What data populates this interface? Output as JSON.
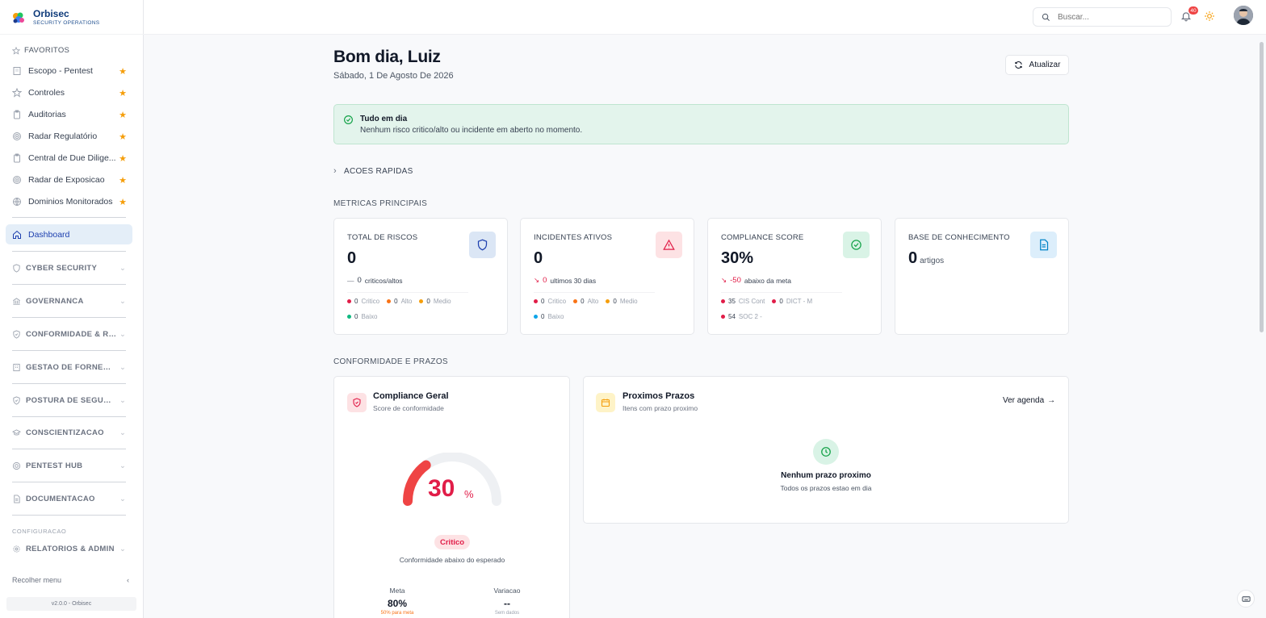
{
  "brand": {
    "name": "Orbisec",
    "subtitle": "SECURITY OPERATIONS"
  },
  "sidebar": {
    "favorites_header": "FAVORITOS",
    "favorites": [
      {
        "label": "Escopo - Pentest",
        "icon": "building-icon"
      },
      {
        "label": "Controles",
        "icon": "star-outline-icon"
      },
      {
        "label": "Auditorias",
        "icon": "clipboard-icon"
      },
      {
        "label": "Radar Regulatório",
        "icon": "radar-icon"
      },
      {
        "label": "Central de Due Dilige...",
        "icon": "clipboard-icon"
      },
      {
        "label": "Radar de Exposicao",
        "icon": "radar-icon"
      },
      {
        "label": "Dominios Monitorados",
        "icon": "globe-icon"
      }
    ],
    "active_item": "Dashboard",
    "groups": [
      {
        "label": "CYBER SECURITY",
        "icon": "shield-icon"
      },
      {
        "label": "GOVERNANCA",
        "icon": "bank-icon"
      },
      {
        "label": "CONFORMIDADE & RIS...",
        "icon": "shield-check-icon"
      },
      {
        "label": "GESTAO DE FORNECE...",
        "icon": "building-icon"
      },
      {
        "label": "POSTURA DE SEGURA...",
        "icon": "shield-check-icon"
      },
      {
        "label": "CONSCIENTIZACAO",
        "icon": "graduation-cap-icon"
      },
      {
        "label": "PENTEST HUB",
        "icon": "target-icon"
      },
      {
        "label": "DOCUMENTACAO",
        "icon": "document-icon"
      }
    ],
    "config_label": "CONFIGURACAO",
    "config_group": {
      "label": "RELATORIOS & ADMIN",
      "icon": "gear-icon"
    },
    "collapse_label": "Recolher menu",
    "version": "v2.0.0 - Orbisec"
  },
  "topbar": {
    "search_placeholder": "Buscar...",
    "notifications_count": "40"
  },
  "header": {
    "greeting": "Bom dia, Luiz",
    "date": "Sábado, 1 De Agosto De 2026",
    "refresh_label": "Atualizar"
  },
  "alert": {
    "title": "Tudo em dia",
    "text": "Nenhum risco critico/alto ou incidente em aberto no momento."
  },
  "quick_actions": "ACOES RAPIDAS",
  "metrics_title": "METRICAS PRINCIPAIS",
  "metrics": {
    "risks": {
      "title": "TOTAL DE RISCOS",
      "value": "0",
      "trend_icon": "—",
      "trend_value": "0",
      "trend_text": "criticos/altos",
      "legend": [
        {
          "value": "0",
          "label": "Critico",
          "color": "#e11d48"
        },
        {
          "value": "0",
          "label": "Alto",
          "color": "#f97316"
        },
        {
          "value": "0",
          "label": "Medio",
          "color": "#f59e0b"
        },
        {
          "value": "0",
          "label": "Baixo",
          "color": "#10b981"
        }
      ]
    },
    "incidents": {
      "title": "INCIDENTES ATIVOS",
      "value": "0",
      "trend_icon": "↘",
      "trend_value": "0",
      "trend_text": "ultimos 30 dias",
      "legend": [
        {
          "value": "0",
          "label": "Critico",
          "color": "#e11d48"
        },
        {
          "value": "0",
          "label": "Alto",
          "color": "#f97316"
        },
        {
          "value": "0",
          "label": "Medio",
          "color": "#f59e0b"
        },
        {
          "value": "0",
          "label": "Baixo",
          "color": "#0ea5e9"
        }
      ]
    },
    "compliance": {
      "title": "COMPLIANCE SCORE",
      "value": "30%",
      "trend_icon": "↘",
      "trend_value": "-50",
      "trend_text": "abaixo da meta",
      "legend": [
        {
          "value": "35",
          "label": "CIS Cont",
          "color": "#e11d48"
        },
        {
          "value": "0",
          "label": "DICT - M",
          "color": "#e11d48"
        },
        {
          "value": "54",
          "label": "SOC 2 -",
          "color": "#e11d48"
        }
      ]
    },
    "knowledge": {
      "title": "BASE DE CONHECIMENTO",
      "value": "0",
      "unit": "artigos"
    }
  },
  "compliance_section_title": "CONFORMIDADE E PRAZOS",
  "compliance_panel": {
    "title": "Compliance Geral",
    "subtitle": "Score de conformidade",
    "score": "30",
    "score_unit": "%",
    "score_fraction": 0.3,
    "status": "Critico",
    "description": "Conformidade abaixo do esperado",
    "meta_label": "Meta",
    "meta_value": "80%",
    "meta_sub": "50% para meta",
    "variacao_label": "Variacao",
    "variacao_value": "--",
    "variacao_sub": "Sem dados"
  },
  "deadlines_panel": {
    "title": "Proximos Prazos",
    "subtitle": "Itens com prazo proximo",
    "link": "Ver agenda",
    "empty_title": "Nenhum prazo proximo",
    "empty_sub": "Todos os prazos estao em dia"
  },
  "colors": {
    "accent": "#1e40af",
    "critical": "#e11d48",
    "success": "#16a34a"
  }
}
